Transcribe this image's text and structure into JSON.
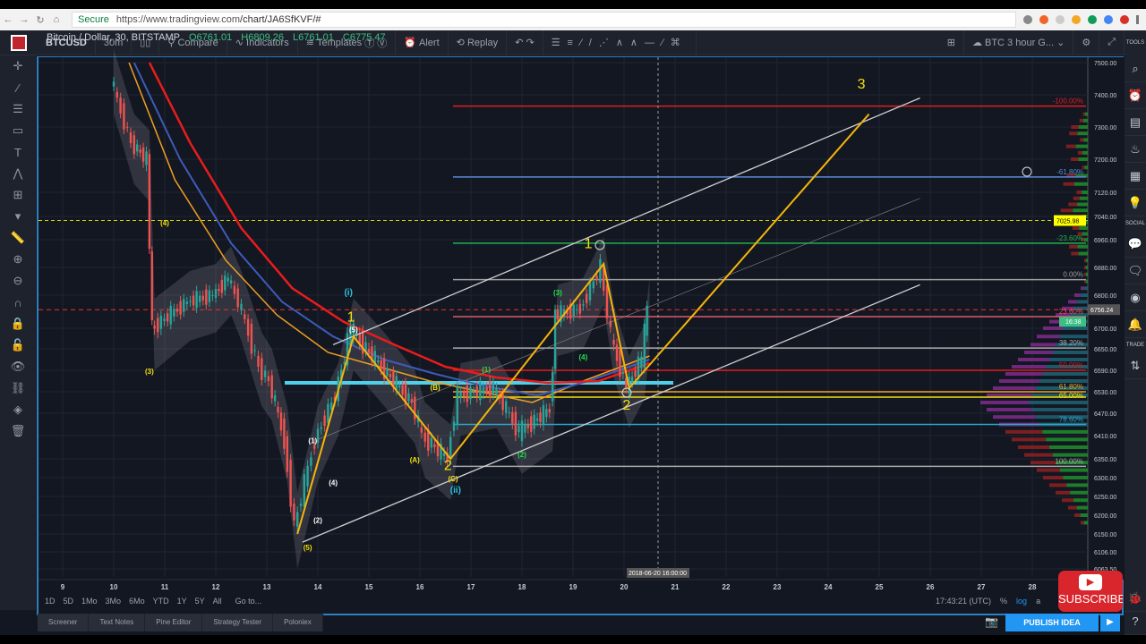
{
  "browser": {
    "secure": "Secure",
    "url_host": "https://www.tradingview.com",
    "url_path": "/chart/JA6SfKVF/#"
  },
  "toolbar": {
    "symbol": "BTCUSD",
    "interval": "30m",
    "compare": "Compare",
    "indicators": "Indicators",
    "templates": "Templates",
    "alert": "Alert",
    "replay": "Replay",
    "layout_name": "BTC 3 hour G..."
  },
  "legend": {
    "title": "Bitcoin / Dollar, 30, BITSTAMP",
    "open": "O6761.01",
    "high": "H6809.26",
    "low": "L6761.01",
    "close": "C6775.47"
  },
  "right_panel": {
    "tools": "TOOLS",
    "social": "SOCIAL",
    "trade": "TRADE"
  },
  "price_axis": {
    "ticks": [
      "7500.00",
      "7400.00",
      "7300.00",
      "7200.00",
      "7120.00",
      "7040.00",
      "6960.00",
      "6880.00",
      "6800.00",
      "6700.00",
      "6650.00",
      "6590.00",
      "6530.00",
      "6470.00",
      "6410.00",
      "6350.00",
      "6300.00",
      "6250.00",
      "6200.00",
      "6150.00",
      "6106.00",
      "6063.50"
    ],
    "alert_price": "7025.98",
    "current_price": "6756.24",
    "countdown": "16:38"
  },
  "time_axis": {
    "ticks": [
      "9",
      "10",
      "11",
      "12",
      "13",
      "14",
      "15",
      "16",
      "17",
      "18",
      "19",
      "20",
      "21",
      "22",
      "23",
      "24",
      "25",
      "26",
      "27",
      "28"
    ],
    "crosshair_label": "2018-06-20 16:00:00"
  },
  "fib_levels": [
    {
      "label": "-100.00%",
      "price": 7365,
      "color": "#e01e1e"
    },
    {
      "label": "-61.80%",
      "price": 7157,
      "color": "#5b8bd6"
    },
    {
      "label": "-23.60%",
      "price": 6950,
      "color": "#22b14c"
    },
    {
      "label": "0.00%",
      "price": 6845,
      "color": "#9e9e9e"
    },
    {
      "label": "23.60%",
      "price": 6735,
      "color": "#e05a6a"
    },
    {
      "label": "38.20%",
      "price": 6652,
      "color": "#aaaaaa"
    },
    {
      "label": "50.00%",
      "price": 6590,
      "color": "#e01e1e"
    },
    {
      "label": "61.80%",
      "price": 6530,
      "color": "#f5a623"
    },
    {
      "label": "65.00%",
      "price": 6515,
      "color": "#f5e10a"
    },
    {
      "label": "78.60%",
      "price": 6440,
      "color": "#2ba6cb"
    },
    {
      "label": "100.00%",
      "price": 6330,
      "color": "#aaaaaa"
    }
  ],
  "colors": {
    "bull": "#26a69a",
    "bear": "#ef5350",
    "wave": "#f5b50a",
    "channel": "#d0d0d0",
    "ma_red": "#e81c1c",
    "ma_blue": "#3e5bb8",
    "ma_orange": "#f0a020",
    "accent": "#2196f3"
  },
  "price_path": [
    [
      10,
      7450
    ],
    [
      10.4,
      7250
    ],
    [
      10.7,
      7200
    ],
    [
      10.8,
      6700
    ],
    [
      11.5,
      6780
    ],
    [
      12,
      6800
    ],
    [
      12.3,
      6850
    ],
    [
      12.5,
      6780
    ],
    [
      12.9,
      6600
    ],
    [
      13.1,
      6560
    ],
    [
      13.4,
      6400
    ],
    [
      13.6,
      6170
    ],
    [
      14,
      6400
    ],
    [
      14.4,
      6520
    ],
    [
      14.7,
      6700
    ],
    [
      15.3,
      6600
    ],
    [
      15.9,
      6500
    ],
    [
      16.1,
      6410
    ],
    [
      16.6,
      6350
    ],
    [
      16.8,
      6520
    ],
    [
      17.5,
      6540
    ],
    [
      18,
      6420
    ],
    [
      18.6,
      6480
    ],
    [
      18.7,
      6740
    ],
    [
      19.2,
      6760
    ],
    [
      19.6,
      6880
    ],
    [
      19.8,
      6680
    ],
    [
      20.1,
      6540
    ],
    [
      20.4,
      6620
    ],
    [
      20.5,
      6760
    ]
  ],
  "ma_red": [
    [
      10.7,
      7500
    ],
    [
      11.5,
      7250
    ],
    [
      12.5,
      7000
    ],
    [
      13.5,
      6820
    ],
    [
      14.5,
      6720
    ],
    [
      15.5,
      6660
    ],
    [
      16.5,
      6600
    ],
    [
      17.5,
      6570
    ],
    [
      18.5,
      6555
    ],
    [
      19.5,
      6560
    ],
    [
      20.5,
      6610
    ]
  ],
  "ma_blue": [
    [
      10.4,
      7500
    ],
    [
      11.3,
      7200
    ],
    [
      12.3,
      6950
    ],
    [
      13.3,
      6780
    ],
    [
      14.3,
      6680
    ],
    [
      15.3,
      6620
    ],
    [
      16.3,
      6580
    ],
    [
      17.3,
      6545
    ],
    [
      18.3,
      6520
    ],
    [
      19.3,
      6560
    ],
    [
      20.5,
      6620
    ]
  ],
  "ma_orange": [
    [
      10.3,
      7500
    ],
    [
      11.2,
      7150
    ],
    [
      12.2,
      6900
    ],
    [
      13.2,
      6740
    ],
    [
      14.2,
      6640
    ],
    [
      15.2,
      6600
    ],
    [
      16.2,
      6560
    ],
    [
      17.2,
      6530
    ],
    [
      18.2,
      6500
    ],
    [
      19.2,
      6560
    ],
    [
      20.5,
      6630
    ]
  ],
  "wave_lines": [
    [
      13.6,
      6150
    ],
    [
      14.7,
      6680
    ],
    [
      16.6,
      6350
    ],
    [
      19.6,
      6890
    ],
    [
      20.1,
      6540
    ],
    [
      24.8,
      7340
    ]
  ],
  "channel_lines": [
    [
      [
        13.7,
        6130
      ],
      [
        25.8,
        6830
      ]
    ],
    [
      [
        14.3,
        6660
      ],
      [
        25.8,
        7390
      ]
    ]
  ],
  "wave_labels": [
    {
      "text": "1",
      "day": 14.65,
      "price": 6720,
      "color": "#f5e10a",
      "size": 16
    },
    {
      "text": "2",
      "day": 16.55,
      "price": 6320,
      "color": "#f5e10a",
      "size": 16
    },
    {
      "text": "1",
      "day": 19.3,
      "price": 6935,
      "color": "#f5e10a",
      "size": 16
    },
    {
      "text": "2",
      "day": 20.05,
      "price": 6480,
      "color": "#f5e10a",
      "size": 16
    },
    {
      "text": "3",
      "day": 24.65,
      "price": 7420,
      "color": "#f5e10a",
      "size": 16
    },
    {
      "text": "(i)",
      "day": 14.6,
      "price": 6800,
      "color": "#2bc3e0",
      "size": 10
    },
    {
      "text": "(ii)",
      "day": 16.7,
      "price": 6260,
      "color": "#2bc3e0",
      "size": 10
    },
    {
      "text": "(4)",
      "day": 11.0,
      "price": 7010,
      "color": "#f5e10a",
      "size": 8
    },
    {
      "text": "(3)",
      "day": 10.7,
      "price": 6580,
      "color": "#f5e10a",
      "size": 8
    },
    {
      "text": "(5)",
      "day": 13.8,
      "price": 6110,
      "color": "#f5e10a",
      "size": 8
    },
    {
      "text": "(1)",
      "day": 13.9,
      "price": 6390,
      "color": "#ffffff",
      "size": 8
    },
    {
      "text": "(2)",
      "day": 14.0,
      "price": 6180,
      "color": "#ffffff",
      "size": 8
    },
    {
      "text": "(4)",
      "day": 14.3,
      "price": 6280,
      "color": "#ffffff",
      "size": 8
    },
    {
      "text": "(5)",
      "day": 14.7,
      "price": 6745,
      "color": "#ffffff",
      "size": 8
    },
    {
      "text": "(A)",
      "day": 15.9,
      "price": 6340,
      "color": "#f5e10a",
      "size": 8
    },
    {
      "text": "(B)",
      "day": 16.3,
      "price": 6535,
      "color": "#f5e10a",
      "size": 8
    },
    {
      "text": "(C)",
      "day": 16.65,
      "price": 6290,
      "color": "#f5e10a",
      "size": 8
    },
    {
      "text": "(1)",
      "day": 17.3,
      "price": 6585,
      "color": "#22e04c",
      "size": 8
    },
    {
      "text": "(2)",
      "day": 18.0,
      "price": 6355,
      "color": "#22e04c",
      "size": 8
    },
    {
      "text": "(3)",
      "day": 18.7,
      "price": 6800,
      "color": "#22e04c",
      "size": 8
    },
    {
      "text": "(4)",
      "day": 19.2,
      "price": 6620,
      "color": "#22e04c",
      "size": 8
    }
  ],
  "range_buttons": [
    "1D",
    "5D",
    "1Mo",
    "3Mo",
    "6Mo",
    "YTD",
    "1Y",
    "5Y",
    "All",
    "Go to..."
  ],
  "clock": {
    "time": "17:43:21 (UTC)",
    "percent": "%",
    "log": "log",
    "auto": "a"
  },
  "bottom_tabs": [
    "Screener",
    "Text Notes",
    "Pine Editor",
    "Strategy Tester",
    "Poloniex"
  ],
  "publish": "PUBLISH IDEA",
  "subscribe": "SUBSCRIBE"
}
